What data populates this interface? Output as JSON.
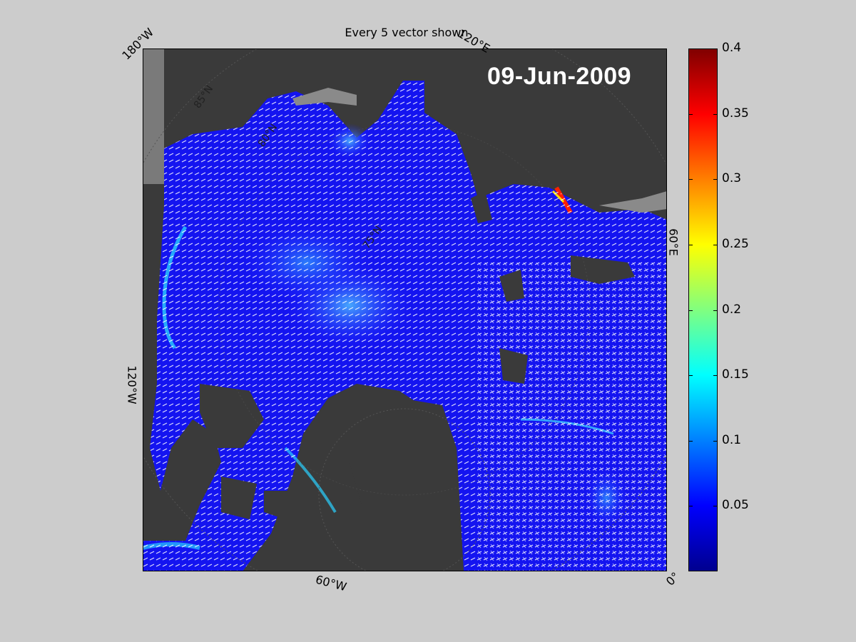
{
  "title": "Every 5 vector shown",
  "date": "09-Jun-2009",
  "longitude_labels": {
    "w180": "180°W",
    "e120": "120°E",
    "w120": "120°W",
    "e60": "60°E",
    "w60": "60°W",
    "zero": "0°"
  },
  "latitude_labels": {
    "n85": "85°N",
    "n80": "80°N",
    "n75": "75°N"
  },
  "colorbar": {
    "min": 0,
    "max": 0.4,
    "ticks": [
      "0.4",
      "0.35",
      "0.3",
      "0.25",
      "0.2",
      "0.15",
      "0.1",
      "0.05"
    ],
    "tick_values": [
      0.4,
      0.35,
      0.3,
      0.25,
      0.2,
      0.15,
      0.1,
      0.05
    ],
    "colormap": "jet"
  },
  "colors": {
    "background": "#cccccc",
    "land": "#3a3a3a",
    "ocean": "#1010ee",
    "vectors": "#ffffff"
  }
}
